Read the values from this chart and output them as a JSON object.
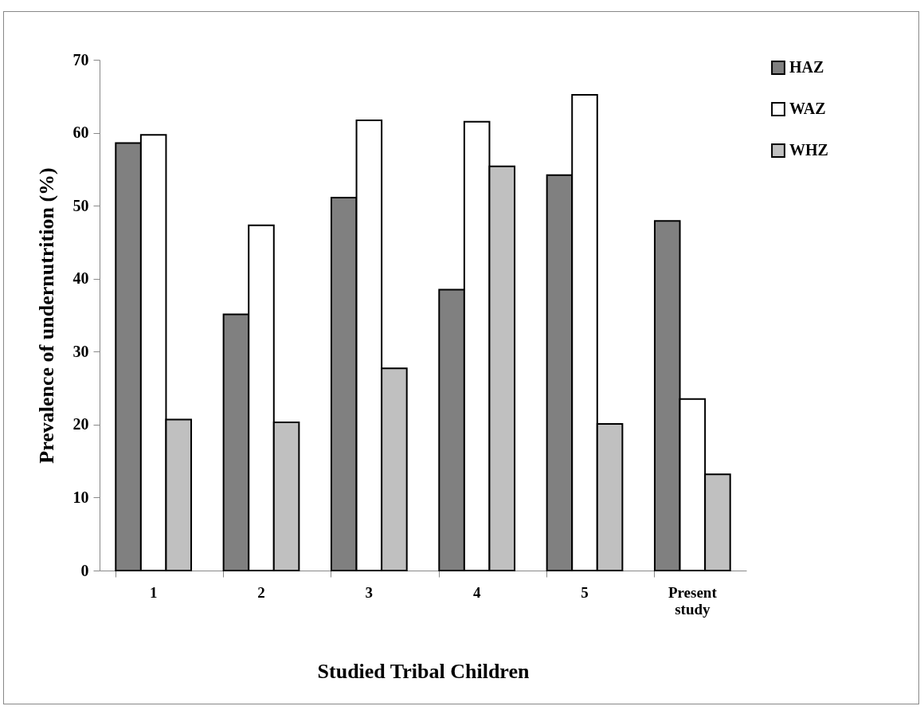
{
  "chart_data": {
    "type": "bar",
    "xlabel": "Studied Tribal Children",
    "ylabel": "Prevalence of undernutrition (%)",
    "categories": [
      "1",
      "2",
      "3",
      "4",
      "5",
      "Present study"
    ],
    "series": [
      {
        "name": "HAZ",
        "color": "#808080",
        "values": [
          58.6,
          35.1,
          51.1,
          38.5,
          54.2,
          47.9
        ]
      },
      {
        "name": "WAZ",
        "color": "#ffffff",
        "values": [
          59.7,
          47.3,
          61.7,
          61.5,
          65.2,
          23.5
        ]
      },
      {
        "name": "WHZ",
        "color": "#c0c0c0",
        "values": [
          20.7,
          20.3,
          27.7,
          55.4,
          20.1,
          13.2
        ]
      }
    ],
    "ylim": [
      0,
      70
    ],
    "yticks": [
      0,
      10,
      20,
      30,
      40,
      50,
      60,
      70
    ],
    "grid": false,
    "legend": "top right"
  }
}
